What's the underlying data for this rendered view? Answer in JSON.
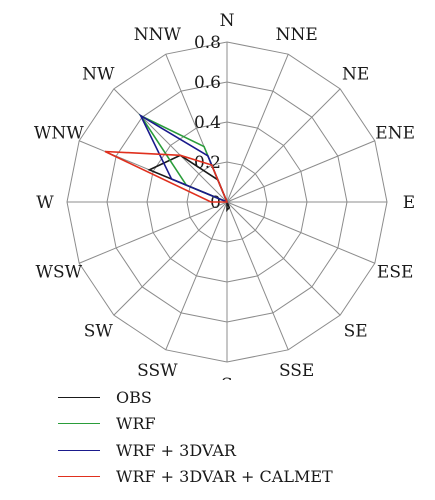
{
  "chart_data": {
    "type": "radar",
    "directions": [
      "N",
      "NNE",
      "NE",
      "ENE",
      "E",
      "ESE",
      "SE",
      "SSE",
      "S",
      "SSW",
      "SW",
      "WSW",
      "W",
      "WNW",
      "NW",
      "NNW"
    ],
    "rlim": [
      0,
      0.8
    ],
    "rticks": [
      "0",
      "0.2",
      "0.4",
      "0.6",
      "0.8"
    ],
    "grid": true,
    "legend_position": "bottom",
    "series": [
      {
        "name": "OBS",
        "color": "#1a1a1a",
        "values": [
          0,
          0,
          0,
          0,
          0,
          0,
          0,
          0.03,
          0.04,
          0,
          0,
          0,
          0,
          0.42,
          0.33,
          0.12
        ]
      },
      {
        "name": "WRF",
        "color": "#2a9d3a",
        "values": [
          0,
          0,
          0,
          0,
          0,
          0,
          0,
          0,
          0,
          0,
          0,
          0,
          0,
          0.22,
          0.61,
          0.3
        ]
      },
      {
        "name": "WRF + 3DVAR",
        "color": "#1a1a8c",
        "values": [
          0,
          0,
          0,
          0,
          0,
          0,
          0,
          0,
          0,
          0,
          0,
          0,
          0,
          0.3,
          0.61,
          0.25
        ]
      },
      {
        "name": "WRF + 3DVAR + CALMET",
        "color": "#e0301e",
        "values": [
          0,
          0,
          0,
          0,
          0,
          0,
          0,
          0,
          0,
          0,
          0,
          0,
          0.08,
          0.66,
          0.33,
          0.2
        ]
      }
    ]
  }
}
